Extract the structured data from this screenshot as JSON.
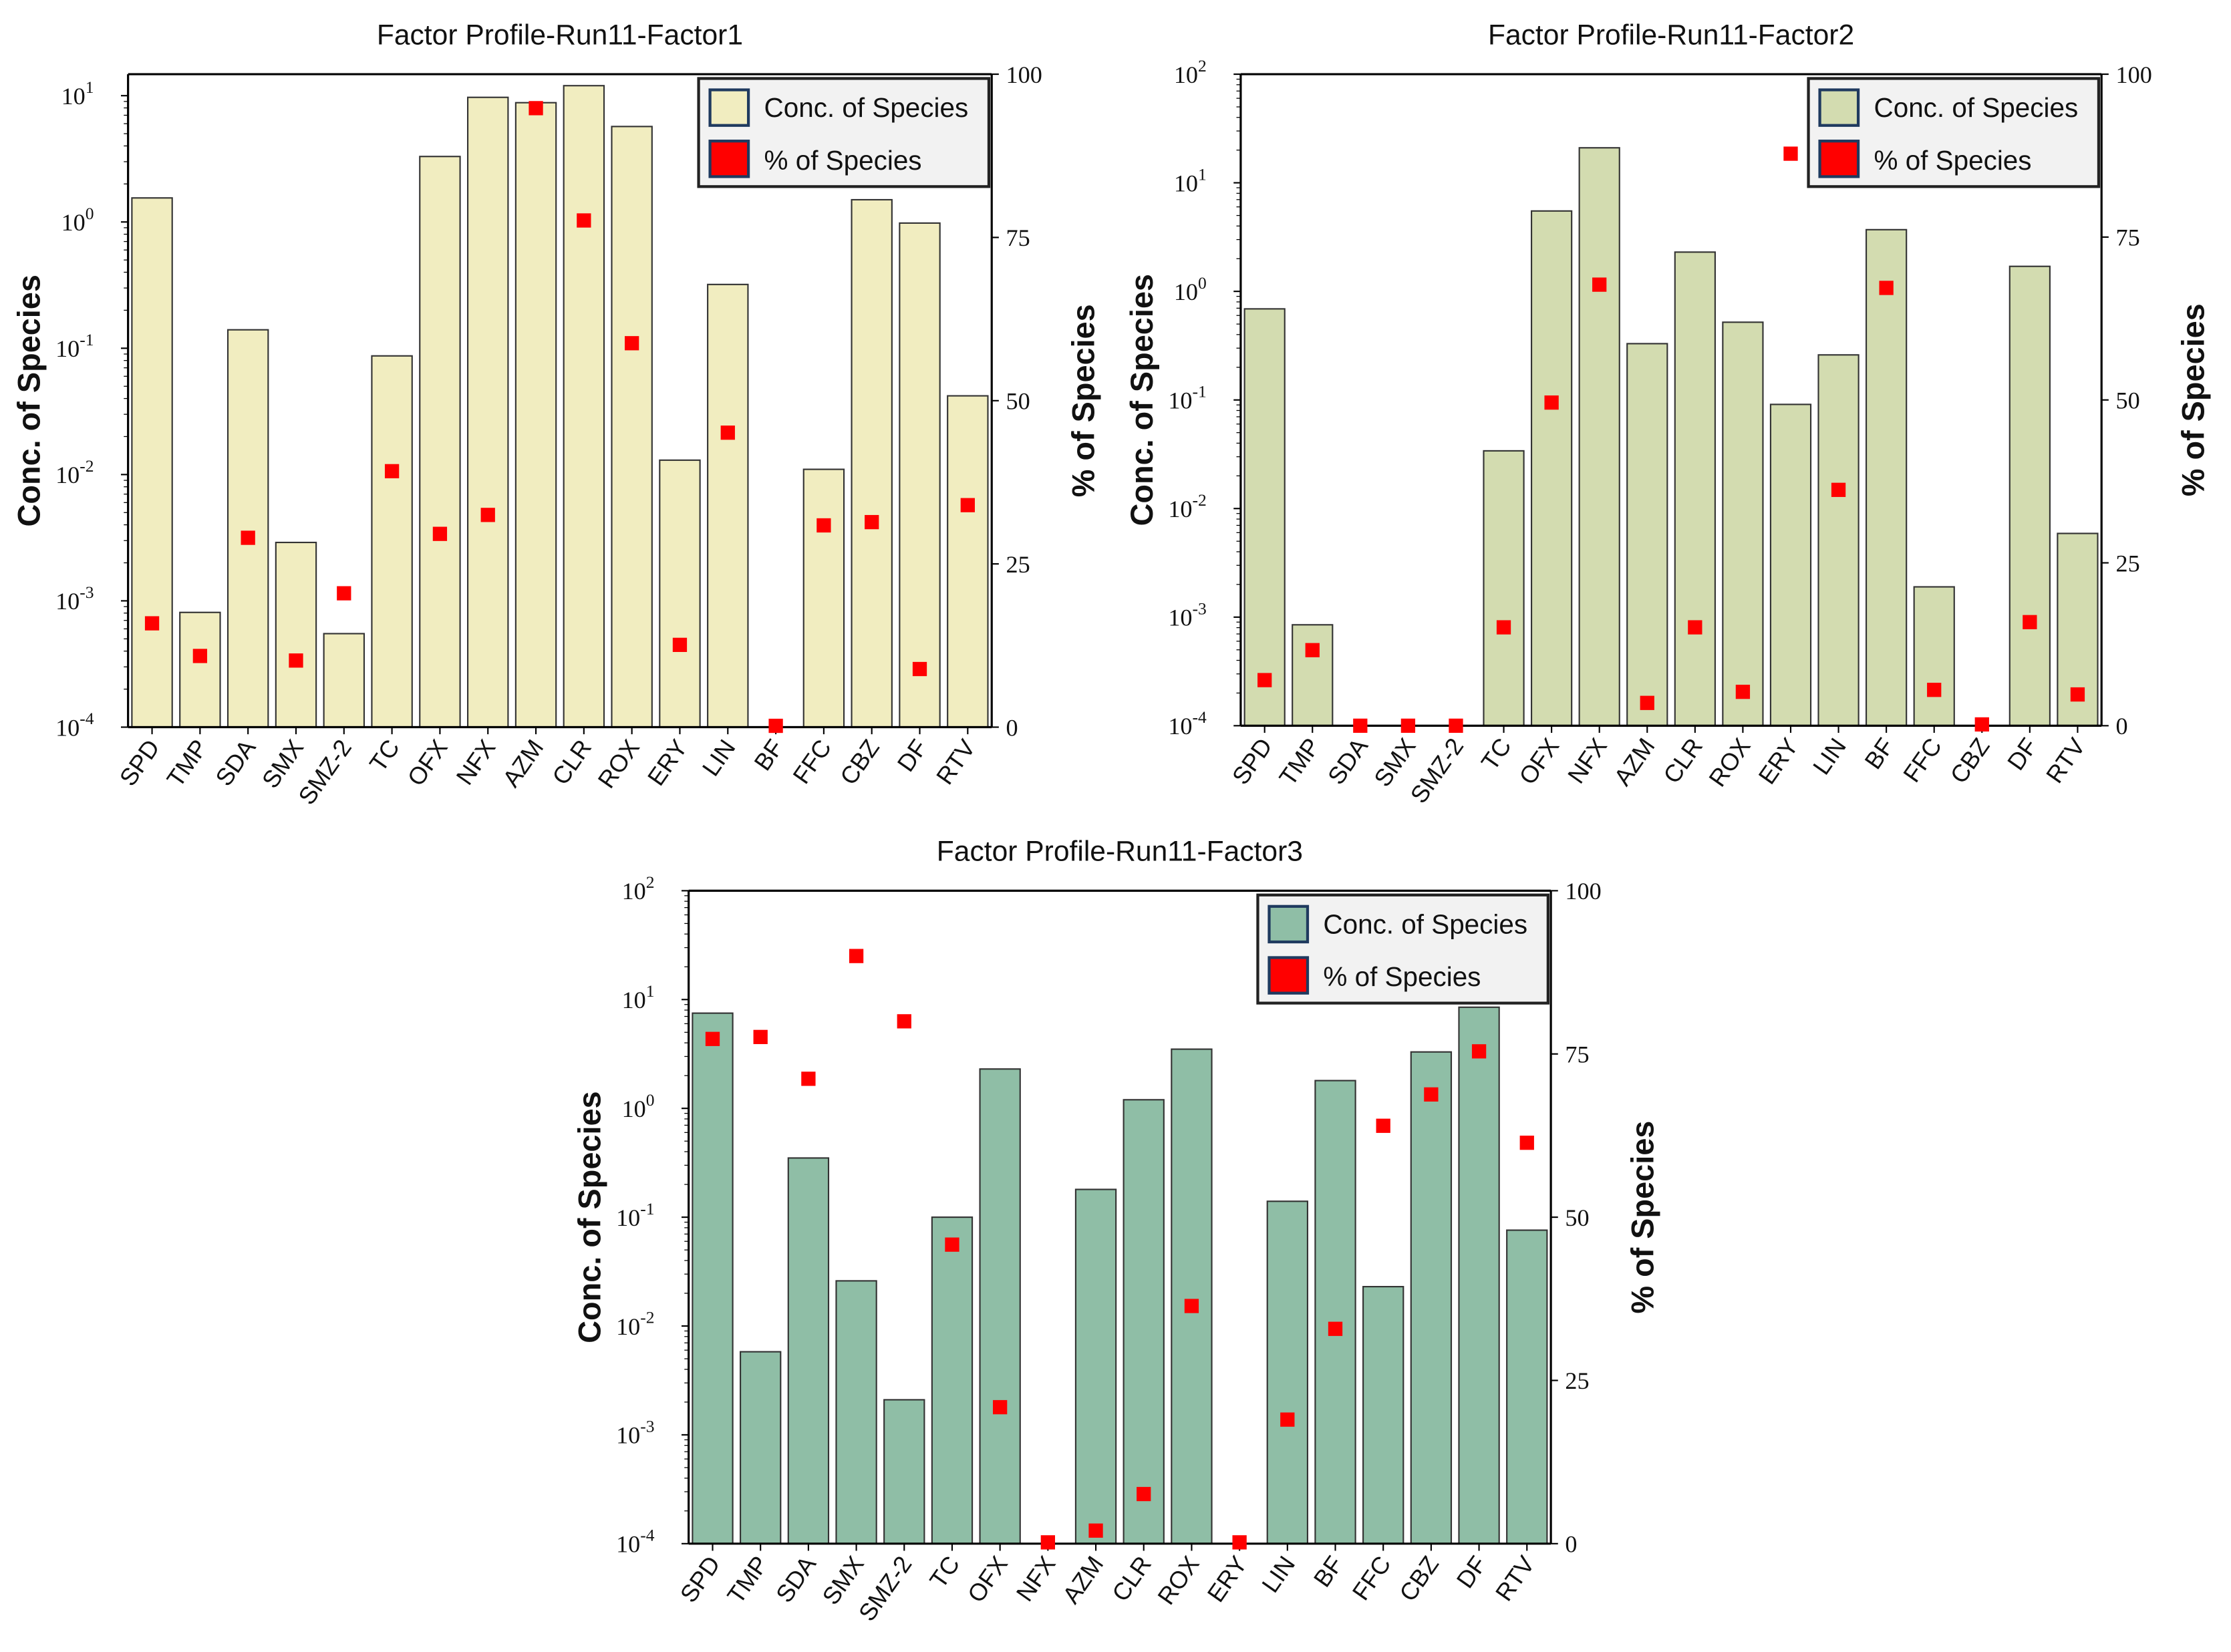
{
  "chart_data": [
    {
      "type": "bar",
      "title": "Factor Profile-Run11-Factor1",
      "ylabel": "Conc. of Species",
      "y2label": "% of Species",
      "yscale": "log",
      "ylim_log10": [
        -4,
        1.17
      ],
      "yticks_log10": [
        -4,
        -3,
        -2,
        -1,
        0,
        1
      ],
      "y2lim": [
        0,
        100
      ],
      "y2ticks": [
        0,
        25,
        50,
        75,
        100
      ],
      "legend": [
        "Conc. of Species",
        "% of Species"
      ],
      "legend_position": "top-right",
      "bar_color": "#f1edc0",
      "marker_color": "#ff0000",
      "categories": [
        "SPD",
        "TMP",
        "SDA",
        "SMX",
        "SMZ-2",
        "TC",
        "OFX",
        "NFX",
        "AZM",
        "CLR",
        "ROX",
        "ERY",
        "LIN",
        "BF",
        "FFC",
        "CBZ",
        "DF",
        "RTV"
      ],
      "series": [
        {
          "name": "Conc. of Species",
          "axis": "left",
          "values": [
            1.55,
            0.00081,
            0.14,
            0.0029,
            0.00055,
            0.087,
            3.3,
            9.7,
            8.8,
            12,
            5.7,
            0.013,
            0.32,
            null,
            0.011,
            1.5,
            0.98,
            0.042
          ]
        },
        {
          "name": "% of Species",
          "axis": "right",
          "values": [
            15.9,
            10.9,
            29,
            10.2,
            20.5,
            39.2,
            29.6,
            32.5,
            94.8,
            77.6,
            58.8,
            12.6,
            45.1,
            0.2,
            30.9,
            31.4,
            8.9,
            34
          ]
        }
      ]
    },
    {
      "type": "bar",
      "title": "Factor Profile-Run11-Factor2",
      "ylabel": "Conc. of Species",
      "y2label": "% of Species",
      "yscale": "log",
      "ylim_log10": [
        -4,
        2
      ],
      "yticks_log10": [
        -4,
        -3,
        -2,
        -1,
        0,
        1,
        2
      ],
      "y2lim": [
        0,
        100
      ],
      "y2ticks": [
        0,
        25,
        50,
        75,
        100
      ],
      "legend": [
        "Conc. of Species",
        "% of Species"
      ],
      "legend_position": "top-right",
      "bar_color": "#d3dcb0",
      "marker_color": "#ff0000",
      "categories": [
        "SPD",
        "TMP",
        "SDA",
        "SMX",
        "SMZ-2",
        "TC",
        "OFX",
        "NFX",
        "AZM",
        "CLR",
        "ROX",
        "ERY",
        "LIN",
        "BF",
        "FFC",
        "CBZ",
        "DF",
        "RTV"
      ],
      "series": [
        {
          "name": "Conc. of Species",
          "axis": "left",
          "values": [
            0.69,
            0.00085,
            null,
            null,
            null,
            0.034,
            5.5,
            21,
            0.33,
            2.3,
            0.52,
            0.091,
            0.26,
            3.7,
            0.0019,
            null,
            1.7,
            0.0059
          ]
        },
        {
          "name": "% of Species",
          "axis": "right",
          "values": [
            7,
            11.6,
            0,
            0,
            0,
            15.1,
            49.6,
            67.7,
            3.5,
            15.1,
            5.2,
            87.8,
            36.2,
            67.2,
            5.5,
            0.2,
            15.9,
            4.8
          ]
        }
      ]
    },
    {
      "type": "bar",
      "title": "Factor Profile-Run11-Factor3",
      "ylabel": "Conc. of Species",
      "y2label": "% of Species",
      "yscale": "log",
      "ylim_log10": [
        -4,
        2
      ],
      "yticks_log10": [
        -4,
        -3,
        -2,
        -1,
        0,
        1,
        2
      ],
      "y2lim": [
        0,
        100
      ],
      "y2ticks": [
        0,
        25,
        50,
        75,
        100
      ],
      "legend": [
        "Conc. of Species",
        "% of Species"
      ],
      "legend_position": "top-right",
      "bar_color": "#8fbea6",
      "marker_color": "#ff0000",
      "categories": [
        "SPD",
        "TMP",
        "SDA",
        "SMX",
        "SMZ-2",
        "TC",
        "OFX",
        "NFX",
        "AZM",
        "CLR",
        "ROX",
        "ERY",
        "LIN",
        "BF",
        "FFC",
        "CBZ",
        "DF",
        "RTV"
      ],
      "series": [
        {
          "name": "Conc. of Species",
          "axis": "left",
          "values": [
            7.5,
            0.0058,
            0.35,
            0.026,
            0.0021,
            0.1,
            2.3,
            null,
            0.18,
            1.2,
            3.5,
            null,
            0.14,
            1.8,
            0.023,
            3.3,
            8.5,
            0.076
          ]
        },
        {
          "name": "% of Species",
          "axis": "right",
          "values": [
            77.3,
            77.6,
            71.2,
            90,
            80,
            45.8,
            20.9,
            0.2,
            2,
            7.6,
            36.4,
            0.2,
            19,
            32.9,
            64,
            68.8,
            75.4,
            61.4
          ]
        }
      ]
    }
  ]
}
